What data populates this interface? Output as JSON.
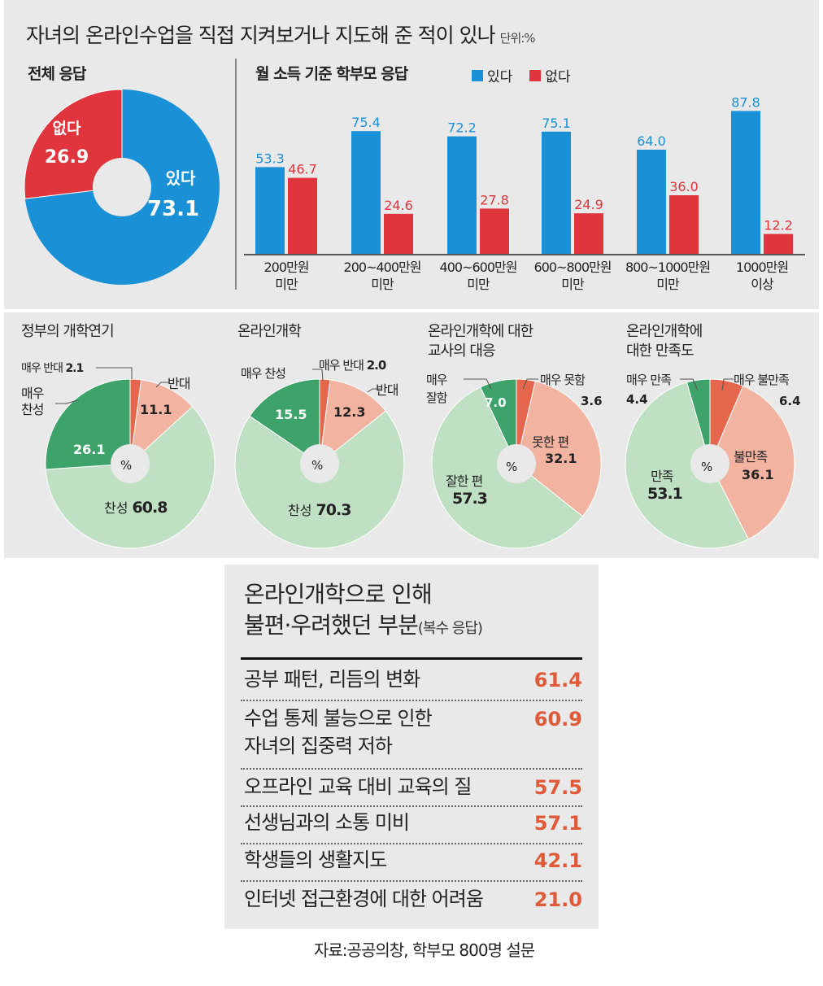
{
  "header": {
    "title": "자녀의 온라인수업을 직접 지켜보거나 지도해 준 적이 있나",
    "unit": "단위:%"
  },
  "colors": {
    "yes": "#1a90d6",
    "no": "#e0353d",
    "dark_green": "#3ea36a",
    "light_green": "#bfe0c3",
    "salmon": "#f2b4a0",
    "orange": "#e5664d"
  },
  "chart_data": [
    {
      "type": "pie",
      "title": "전체 응답",
      "slices": [
        {
          "label": "있다",
          "value": 73.1
        },
        {
          "label": "없다",
          "value": 26.9
        }
      ]
    },
    {
      "type": "bar",
      "title": "월 소득 기준 학부모 응답",
      "categories": [
        "200만원 미만",
        "200~400만원 미만",
        "400~600만원 미만",
        "600~800만원 미만",
        "800~1000만원 미만",
        "1000만원 이상"
      ],
      "categories_lines": [
        [
          "200만원",
          "미만"
        ],
        [
          "200~400만원",
          "미만"
        ],
        [
          "400~600만원",
          "미만"
        ],
        [
          "600~800만원",
          "미만"
        ],
        [
          "800~1000만원",
          "미만"
        ],
        [
          "1000만원",
          "이상"
        ]
      ],
      "series": [
        {
          "name": "있다",
          "values": [
            53.3,
            75.4,
            72.2,
            75.1,
            64.0,
            87.8
          ]
        },
        {
          "name": "없다",
          "values": [
            46.7,
            24.6,
            27.8,
            24.9,
            36.0,
            12.2
          ]
        }
      ],
      "ylim": [
        0,
        100
      ]
    },
    {
      "type": "pie",
      "title": "정부의 개학연기",
      "center": "%",
      "slices": [
        {
          "label": "매우 반대",
          "value": 2.1
        },
        {
          "label": "반대",
          "value": 11.1
        },
        {
          "label": "찬성",
          "value": 60.8
        },
        {
          "label": "매우 찬성",
          "value": 26.1
        }
      ]
    },
    {
      "type": "pie",
      "title": "온라인개학",
      "center": "%",
      "slices": [
        {
          "label": "매우 반대",
          "value": 2.0
        },
        {
          "label": "반대",
          "value": 12.3
        },
        {
          "label": "찬성",
          "value": 70.3
        },
        {
          "label": "매우 찬성",
          "value": 15.5
        }
      ]
    },
    {
      "type": "pie",
      "title": "온라인개학에 대한 교사의 대응",
      "center": "%",
      "slices": [
        {
          "label": "매우 못함",
          "value": 3.6
        },
        {
          "label": "못한 편",
          "value": 32.1
        },
        {
          "label": "잘한 편",
          "value": 57.3
        },
        {
          "label": "매우 잘함",
          "value": 7.0
        }
      ]
    },
    {
      "type": "pie",
      "title": "온라인개학에 대한 만족도",
      "center": "%",
      "slices": [
        {
          "label": "매우 불만족",
          "value": 6.4
        },
        {
          "label": "불만족",
          "value": 36.1
        },
        {
          "label": "만족",
          "value": 53.1
        },
        {
          "label": "매우 만족",
          "value": 4.4
        }
      ]
    },
    {
      "type": "table",
      "title": "온라인개학으로 인해 불편·우려했던 부분",
      "subtitle": "(복수 응답)",
      "rows": [
        {
          "label": "공부 패턴, 리듬의 변화",
          "value": 61.4
        },
        {
          "label": "수업 통제 불능으로 인한 자녀의 집중력 저하",
          "value": 60.9
        },
        {
          "label": "오프라인 교육 대비 교육의 질",
          "value": 57.5
        },
        {
          "label": "선생님과의 소통 미비",
          "value": 57.1
        },
        {
          "label": "학생들의 생활지도",
          "value": 42.1
        },
        {
          "label": "인터넷 접근환경에 대한 어려움",
          "value": 21.0
        }
      ]
    }
  ],
  "text": {
    "bar_cat_line1": [
      "200만원",
      "200~400만원",
      "400~600만원",
      "600~800만원",
      "800~1000만원",
      "1000만원"
    ],
    "bar_cat_line2": [
      "미만",
      "미만",
      "미만",
      "미만",
      "미만",
      "이상"
    ],
    "bar_yes": [
      "53.3",
      "75.4",
      "72.2",
      "75.1",
      "64.0",
      "87.8"
    ],
    "bar_no": [
      "46.7",
      "24.6",
      "27.8",
      "24.9",
      "36.0",
      "12.2"
    ],
    "donut_yes_label": "있다",
    "donut_yes_value": "73.1",
    "donut_no_label": "없다",
    "donut_no_value": "26.9",
    "pie1_title": "정부의 개학연기",
    "pie1_vstrong_no": "매우 반대",
    "pie1_vstrong_no_val": "2.1",
    "pie1_no": "반대",
    "pie1_no_val": "11.1",
    "pie1_vstrong_yes_1": "매우",
    "pie1_vstrong_yes_2": "찬성",
    "pie1_vstrong_yes_val": "26.1",
    "pie1_yes": "찬성",
    "pie1_yes_val": "60.8",
    "pie2_title": "온라인개학",
    "pie2_vstrong_yes": "매우 찬성",
    "pie2_vstrong_yes_val": "15.5",
    "pie2_vstrong_no": "매우 반대",
    "pie2_vstrong_no_val": "2.0",
    "pie2_no": "반대",
    "pie2_no_val": "12.3",
    "pie2_yes": "찬성",
    "pie2_yes_val": "70.3",
    "pie3_title_1": "온라인개학에 대한",
    "pie3_title_2": "교사의 대응",
    "pie3_vgood_1": "매우",
    "pie3_vgood_2": "잘함",
    "pie3_vgood_val": "7.0",
    "pie3_vbad": "매우 못함",
    "pie3_vbad_val": "3.6",
    "pie3_bad": "못한 편",
    "pie3_bad_val": "32.1",
    "pie3_good": "잘한 편",
    "pie3_good_val": "57.3",
    "pie4_title_1": "온라인개학에",
    "pie4_title_2": "대한 만족도",
    "pie4_vsat": "매우 만족",
    "pie4_vsat_val": "4.4",
    "pie4_vunsat": "매우 불만족",
    "pie4_vunsat_val": "6.4",
    "pie4_unsat": "불만족",
    "pie4_unsat_val": "36.1",
    "pie4_sat": "만족",
    "pie4_sat_val": "53.1",
    "list_title_1": "온라인개학으로 인해",
    "list_title_2": "불편·우려했던 부분",
    "list_sub": "(복수 응답)",
    "row_labels": [
      "공부 패턴, 리듬의 변화",
      "수업 통제 불능으로 인한",
      "오프라인 교육 대비 교육의 질",
      "선생님과의 소통 미비",
      "학생들의 생활지도",
      "인터넷 접근환경에 대한 어려움"
    ],
    "row2_line2": "자녀의 집중력 저하",
    "row_values": [
      "61.4",
      "60.9",
      "57.5",
      "57.1",
      "42.1",
      "21.0"
    ],
    "source": "자료:공공의창, 학부모 800명 설문"
  }
}
